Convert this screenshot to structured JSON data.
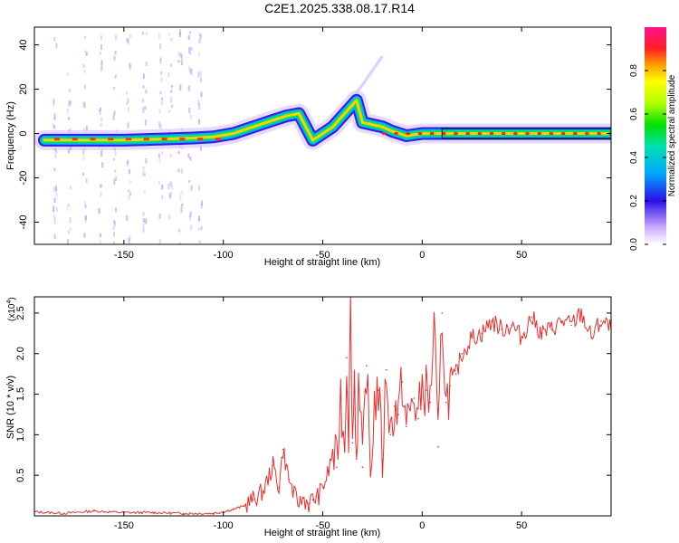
{
  "title": "C2E1.2025.338.08.17.R14",
  "colors": {
    "snr_line": "#e8302e",
    "background": "#ffffff",
    "axis": "#000000"
  },
  "chart_data": [
    {
      "type": "heatmap",
      "name": "spectrogram",
      "xlabel": "Height of straight line (km)",
      "ylabel": "Frequency (Hz)",
      "xlim": [
        -195,
        95
      ],
      "ylim": [
        -50,
        48
      ],
      "xticks": [
        -150,
        -100,
        -50,
        0,
        50
      ],
      "xtick_labels": [
        "-150",
        "-100",
        "-50",
        "0",
        "50"
      ],
      "yticks": [
        -40,
        -20,
        0,
        20,
        40
      ],
      "ytick_labels": [
        "-40",
        "-20",
        "0",
        "20",
        "40"
      ],
      "ridge": [
        {
          "x": -190,
          "f": -3
        },
        {
          "x": -170,
          "f": -3
        },
        {
          "x": -150,
          "f": -3
        },
        {
          "x": -130,
          "f": -2.5
        },
        {
          "x": -115,
          "f": -2
        },
        {
          "x": -105,
          "f": -1.5
        },
        {
          "x": -95,
          "f": 0
        },
        {
          "x": -85,
          "f": 3
        },
        {
          "x": -75,
          "f": 6
        },
        {
          "x": -68,
          "f": 8
        },
        {
          "x": -62,
          "f": 9
        },
        {
          "x": -55,
          "f": -3
        },
        {
          "x": -45,
          "f": 3
        },
        {
          "x": -38,
          "f": 10
        },
        {
          "x": -33,
          "f": 15
        },
        {
          "x": -30,
          "f": 5
        },
        {
          "x": -25,
          "f": 4
        },
        {
          "x": -20,
          "f": 3
        },
        {
          "x": -15,
          "f": 1
        },
        {
          "x": -8,
          "f": -1
        },
        {
          "x": 0,
          "f": 0
        },
        {
          "x": 10,
          "f": 0
        },
        {
          "x": 95,
          "f": 0
        }
      ],
      "colorbar": {
        "label": "Normalized spectral amplitude",
        "range": [
          0,
          1
        ],
        "ticks": [
          0,
          0.2,
          0.4,
          0.6,
          0.8
        ],
        "tick_labels": [
          "0.0",
          "0.2",
          "0.4",
          "0.6",
          "0.8"
        ]
      }
    },
    {
      "type": "line",
      "name": "snr",
      "xlabel": "Height of straight line (km)",
      "ylabel": "SNR (10 * v/v)",
      "y_multiplier_label": "(x10",
      "y_multiplier_exp": "4",
      "y_multiplier_close": ")",
      "xlim": [
        -195,
        95
      ],
      "ylim": [
        0,
        2.7
      ],
      "xticks": [
        -150,
        -100,
        -50,
        0,
        50
      ],
      "xtick_labels": [
        "-150",
        "-100",
        "-50",
        "0",
        "50"
      ],
      "yticks": [
        0.5,
        1.0,
        1.5,
        2.0,
        2.5
      ],
      "ytick_labels": [
        "0.5",
        "1.0",
        "1.5",
        "2.0",
        "2.5"
      ],
      "series": [
        {
          "name": "SNR",
          "x": [
            -195,
            -180,
            -165,
            -150,
            -135,
            -120,
            -105,
            -100,
            -95,
            -90,
            -85,
            -80,
            -75,
            -72,
            -70,
            -67,
            -65,
            -62,
            -60,
            -57,
            -55,
            -52,
            -50,
            -47,
            -45,
            -43,
            -41,
            -39,
            -38,
            -37,
            -36,
            -35,
            -34,
            -33,
            -32,
            -30,
            -28,
            -26,
            -24,
            -22,
            -20,
            -18,
            -16,
            -14,
            -12,
            -10,
            -8,
            -6,
            -4,
            -2,
            0,
            2,
            4,
            6,
            8,
            10,
            12,
            14,
            17,
            20,
            25,
            30,
            35,
            40,
            45,
            50,
            55,
            60,
            65,
            70,
            75,
            80,
            85,
            90,
            95
          ],
          "values": [
            0.05,
            0.03,
            0.06,
            0.04,
            0.04,
            0.03,
            0.03,
            0.05,
            0.08,
            0.12,
            0.2,
            0.3,
            0.62,
            0.35,
            0.82,
            0.45,
            0.3,
            0.12,
            0.22,
            0.15,
            0.2,
            0.25,
            0.35,
            0.55,
            0.8,
            0.6,
            1.5,
            0.85,
            1.95,
            1.1,
            2.55,
            0.9,
            1.75,
            0.7,
            1.6,
            0.6,
            1.85,
            0.5,
            1.4,
            1.55,
            0.7,
            1.8,
            1.0,
            1.35,
            1.25,
            1.65,
            1.1,
            1.3,
            1.45,
            1.2,
            1.6,
            1.55,
            1.4,
            2.4,
            0.85,
            2.5,
            1.4,
            1.6,
            1.75,
            2.0,
            2.2,
            2.25,
            2.4,
            2.3,
            2.35,
            2.2,
            2.45,
            2.25,
            2.3,
            2.4,
            2.35,
            2.5,
            2.2,
            2.4,
            2.3
          ]
        }
      ]
    }
  ]
}
